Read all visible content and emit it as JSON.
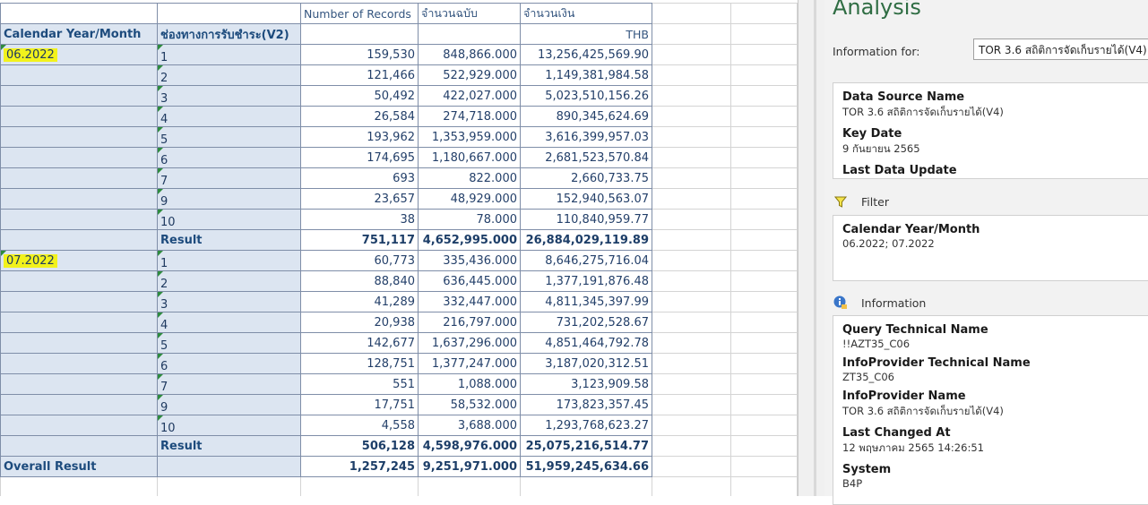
{
  "table": {
    "header_top": [
      "",
      "",
      "Number of Records",
      "จำนวนฉบับ",
      "จำนวนเงิน"
    ],
    "header_row": {
      "dim1": "Calendar Year/Month",
      "dim2": "ช่องทางการรับชำระ(V2)",
      "unit": "THB"
    },
    "groups": [
      {
        "label": "06.2022",
        "rows": [
          {
            "channel": "1",
            "records": "159,530",
            "count": "848,866.000",
            "amount": "13,256,425,569.90"
          },
          {
            "channel": "2",
            "records": "121,466",
            "count": "522,929.000",
            "amount": "1,149,381,984.58"
          },
          {
            "channel": "3",
            "records": "50,492",
            "count": "422,027.000",
            "amount": "5,023,510,156.26"
          },
          {
            "channel": "4",
            "records": "26,584",
            "count": "274,718.000",
            "amount": "890,345,624.69"
          },
          {
            "channel": "5",
            "records": "193,962",
            "count": "1,353,959.000",
            "amount": "3,616,399,957.03"
          },
          {
            "channel": "6",
            "records": "174,695",
            "count": "1,180,667.000",
            "amount": "2,681,523,570.84"
          },
          {
            "channel": "7",
            "records": "693",
            "count": "822.000",
            "amount": "2,660,733.75"
          },
          {
            "channel": "9",
            "records": "23,657",
            "count": "48,929.000",
            "amount": "152,940,563.07"
          },
          {
            "channel": "10",
            "records": "38",
            "count": "78.000",
            "amount": "110,840,959.77"
          }
        ],
        "result": {
          "label": "Result",
          "records": "751,117",
          "count": "4,652,995.000",
          "amount": "26,884,029,119.89"
        }
      },
      {
        "label": "07.2022",
        "rows": [
          {
            "channel": "1",
            "records": "60,773",
            "count": "335,436.000",
            "amount": "8,646,275,716.04"
          },
          {
            "channel": "2",
            "records": "88,840",
            "count": "636,445.000",
            "amount": "1,377,191,876.48"
          },
          {
            "channel": "3",
            "records": "41,289",
            "count": "332,447.000",
            "amount": "4,811,345,397.99"
          },
          {
            "channel": "4",
            "records": "20,938",
            "count": "216,797.000",
            "amount": "731,202,528.67"
          },
          {
            "channel": "5",
            "records": "142,677",
            "count": "1,637,296.000",
            "amount": "4,851,464,792.78"
          },
          {
            "channel": "6",
            "records": "128,751",
            "count": "1,377,247.000",
            "amount": "3,187,020,312.51"
          },
          {
            "channel": "7",
            "records": "551",
            "count": "1,088.000",
            "amount": "3,123,909.58"
          },
          {
            "channel": "9",
            "records": "17,751",
            "count": "58,532.000",
            "amount": "173,823,357.45"
          },
          {
            "channel": "10",
            "records": "4,558",
            "count": "3,688.000",
            "amount": "1,293,768,623.27"
          }
        ],
        "result": {
          "label": "Result",
          "records": "506,128",
          "count": "4,598,976.000",
          "amount": "25,075,216,514.77"
        }
      }
    ],
    "overall": {
      "label": "Overall Result",
      "records": "1,257,245",
      "count": "9,251,971.000",
      "amount": "51,959,245,634.66"
    }
  },
  "pane": {
    "title": "Analysis",
    "info_for_label": "Information for:",
    "info_for_value": "TOR 3.6 สถิติการจัดเก็บรายได้(V4)",
    "datasource": [
      {
        "key": "Data Source Name",
        "value": "TOR 3.6 สถิติการจัดเก็บรายได้(V4)"
      },
      {
        "key": "Key Date",
        "value": "9 กันยายน 2565"
      },
      {
        "key": "Last Data Update",
        "value": ""
      }
    ],
    "filter_label": "Filter",
    "filter": {
      "key": "Calendar Year/Month",
      "value": "06.2022; 07.2022"
    },
    "information_label": "Information",
    "information": [
      {
        "key": "Query Technical Name",
        "value": "!!AZT35_C06"
      },
      {
        "key": "InfoProvider Technical Name",
        "value": "ZT35_C06"
      },
      {
        "key": "InfoProvider Name",
        "value": "TOR 3.6 สถิติการจัดเก็บรายได้(V4)"
      },
      {
        "key": "Last Changed At",
        "value": "12 พฤษภาคม 2565 14:26:51"
      },
      {
        "key": "System",
        "value": "B4P"
      }
    ],
    "icons": {
      "filter": "filter-funnel-icon",
      "information": "info-icon"
    },
    "colors": {
      "title": "#2f6d43",
      "header_fill": "#dce5f1",
      "highlight": "#f2f21c",
      "text": "#1d4b7d"
    }
  }
}
